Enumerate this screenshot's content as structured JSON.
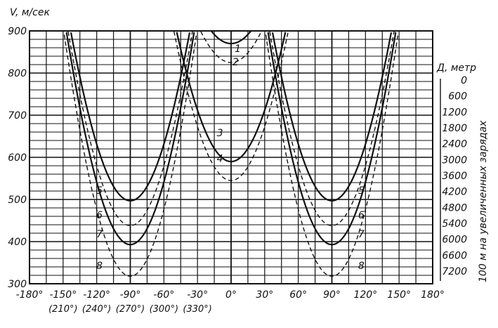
{
  "chart_data": {
    "type": "line",
    "ylabel": "V, м/сек",
    "ylim": [
      300,
      900
    ],
    "xlim": [
      -180,
      180
    ],
    "grid": true,
    "y_ticks": [
      "900",
      "800",
      "700",
      "600",
      "500",
      "400",
      "300"
    ],
    "x_ticks": [
      "-180°",
      "-150°",
      "-120°",
      "-90°",
      "-60°",
      "-30°",
      "0°",
      "30°",
      "60°",
      "90°",
      "120°",
      "150°",
      "180°"
    ],
    "x_ticks_secondary": [
      "(210°)",
      "(240°)",
      "(270°)",
      "(300°)",
      "(330°)"
    ],
    "right_axis": {
      "title": "Д, метр",
      "ticks": [
        "0",
        "600",
        "1200",
        "1800",
        "2400",
        "3000",
        "3600",
        "4200",
        "4800",
        "5400",
        "6000",
        "6600",
        "7200"
      ],
      "label": "100 м на увеличенных зарядах"
    },
    "series": [
      {
        "name": "1",
        "style": "solid",
        "center": 0,
        "min": 870
      },
      {
        "name": "2",
        "style": "dashed",
        "center": 0,
        "min": 825
      },
      {
        "name": "3",
        "style": "solid",
        "center": 0,
        "min": 590
      },
      {
        "name": "4",
        "style": "dashed",
        "center": 0,
        "min": 545
      },
      {
        "name": "5",
        "style": "solid",
        "center": -90,
        "min": 497
      },
      {
        "name": "6",
        "style": "dashed",
        "center": -90,
        "min": 438
      },
      {
        "name": "7",
        "style": "solid",
        "center": -90,
        "min": 393
      },
      {
        "name": "8",
        "style": "dashed",
        "center": -90,
        "min": 318
      },
      {
        "name": "5",
        "style": "solid",
        "center": 90,
        "min": 497
      },
      {
        "name": "6",
        "style": "dashed",
        "center": 90,
        "min": 438
      },
      {
        "name": "7",
        "style": "solid",
        "center": 90,
        "min": 393
      },
      {
        "name": "8",
        "style": "dashed",
        "center": 90,
        "min": 318
      }
    ]
  }
}
